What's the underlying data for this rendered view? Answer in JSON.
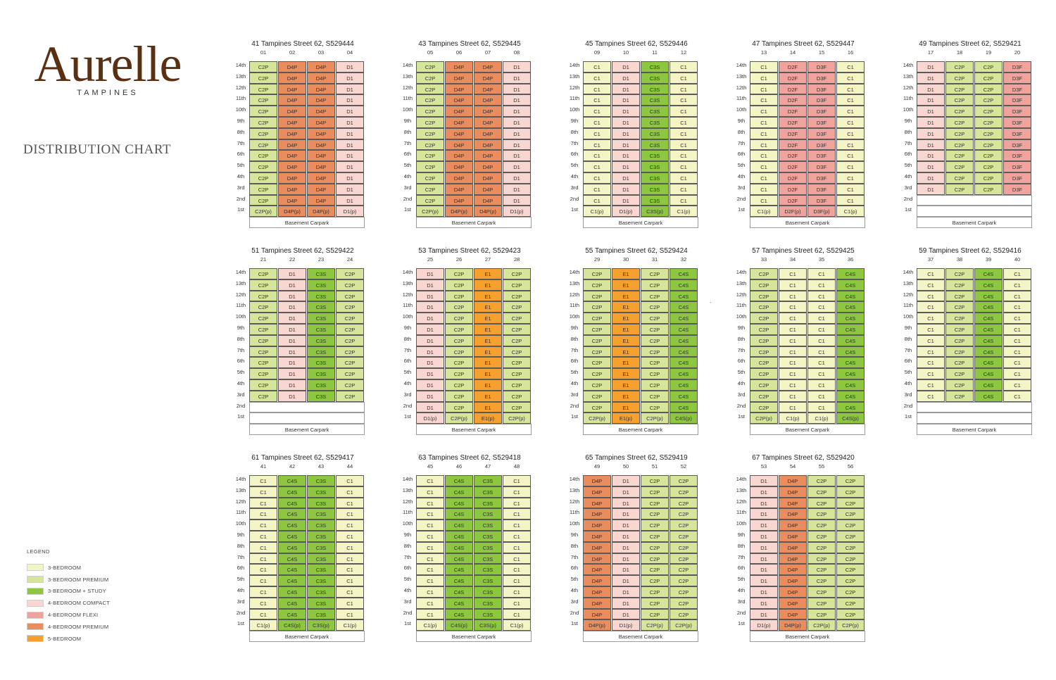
{
  "logo": {
    "word": "Aurelle",
    "sub": "TAMPINES"
  },
  "heading": "DISTRIBUTION CHART",
  "legend": {
    "title": "LEGEND",
    "items": [
      {
        "label": "3-BEDROOM",
        "color": "#f3f5c4"
      },
      {
        "label": "3-BEDROOM PREMIUM",
        "color": "#d5e59a"
      },
      {
        "label": "3-BEDROOM + STUDY",
        "color": "#8dc63f"
      },
      {
        "label": "4-BEDROOM COMPACT",
        "color": "#f9d6cf"
      },
      {
        "label": "4-BEDROOM FLEXI",
        "color": "#f0a39c"
      },
      {
        "label": "4-BEDROOM PREMIUM",
        "color": "#e98c5e"
      },
      {
        "label": "5-BEDROOM",
        "color": "#f5a02f"
      }
    ]
  },
  "type_colors": {
    "C1": "#f3f5c4",
    "C2P": "#d5e59a",
    "C3S": "#8dc63f",
    "C4S": "#8dc63f",
    "D1": "#f9d6cf",
    "D2F": "#f0a39c",
    "D3F": "#f0a39c",
    "D4P": "#e98c5e",
    "E1": "#f5a02f"
  },
  "floors": [
    "14th",
    "13th",
    "12th",
    "11th",
    "10th",
    "9th",
    "8th",
    "7th",
    "6th",
    "5th",
    "4th",
    "3rd",
    "2nd",
    "1st"
  ],
  "carpark_label": "Basement Carpark",
  "separator": ".",
  "blocks": [
    {
      "title": "41 Tampines Street 62, S529444",
      "units": [
        "01",
        "02",
        "03",
        "04"
      ],
      "cols": [
        "C2P",
        "D4P",
        "D4P",
        "D1"
      ],
      "top": "full"
    },
    {
      "title": "43 Tampines Street 62, S529445",
      "units": [
        "05",
        "06",
        "07",
        "08"
      ],
      "cols": [
        "C2P",
        "D4P",
        "D4P",
        "D1"
      ],
      "top": "full"
    },
    {
      "title": "45 Tampines Street 62, S529446",
      "units": [
        "09",
        "10",
        "11",
        "12"
      ],
      "cols": [
        "C1",
        "D1",
        "C3S",
        "C1"
      ],
      "top": "full"
    },
    {
      "title": "47 Tampines Street 62, S529447",
      "units": [
        "13",
        "14",
        "15",
        "16"
      ],
      "cols": [
        "C1",
        "D2F",
        "D3F",
        "C1"
      ],
      "top": "full"
    },
    {
      "title": "49 Tampines Street 62, S529421",
      "units": [
        "17",
        "18",
        "19",
        "20"
      ],
      "cols": [
        "D1",
        "C2P",
        "C2P",
        "D3F"
      ],
      "top": "no1st"
    },
    {
      "title": "51 Tampines Street 62, S529422",
      "units": [
        "21",
        "22",
        "23",
        "24"
      ],
      "cols": [
        "C2P",
        "D1",
        "C3S",
        "C2P"
      ],
      "top": "no1st"
    },
    {
      "title": "53 Tampines Street 62, S529423",
      "units": [
        "25",
        "26",
        "27",
        "28"
      ],
      "cols": [
        "D1",
        "C2P",
        "E1",
        "C2P"
      ],
      "top": "full"
    },
    {
      "title": "55 Tampines Street 62, S529424",
      "units": [
        "29",
        "30",
        "31",
        "32"
      ],
      "cols": [
        "C2P",
        "E1",
        "C2P",
        "C4S"
      ],
      "top": "full"
    },
    {
      "title": "57 Tampines Street 62, S529425",
      "units": [
        "33",
        "34",
        "35",
        "36"
      ],
      "cols": [
        "C2P",
        "C1",
        "C1",
        "C4S"
      ],
      "top": "full"
    },
    {
      "title": "59 Tampines Street 62, S529416",
      "units": [
        "37",
        "38",
        "39",
        "40"
      ],
      "cols": [
        "C1",
        "C2P",
        "C4S",
        "C1"
      ],
      "top": "no1st"
    },
    {
      "title": "61 Tampines Street 62, S529417",
      "units": [
        "41",
        "42",
        "43",
        "44"
      ],
      "cols": [
        "C1",
        "C4S",
        "C3S",
        "C1"
      ],
      "top": "full"
    },
    {
      "title": "63 Tampines Street 62, S529418",
      "units": [
        "45",
        "46",
        "47",
        "48"
      ],
      "cols": [
        "C1",
        "C4S",
        "C3S",
        "C1"
      ],
      "top": "full"
    },
    {
      "title": "65 Tampines Street 62, S529419",
      "units": [
        "49",
        "50",
        "51",
        "52"
      ],
      "cols": [
        "D4P",
        "D1",
        "C2P",
        "C2P"
      ],
      "top": "full"
    },
    {
      "title": "67 Tampines Street 62, S529420",
      "units": [
        "53",
        "54",
        "55",
        "56"
      ],
      "cols": [
        "D1",
        "D4P",
        "C2P",
        "C2P"
      ],
      "top": "full"
    }
  ]
}
